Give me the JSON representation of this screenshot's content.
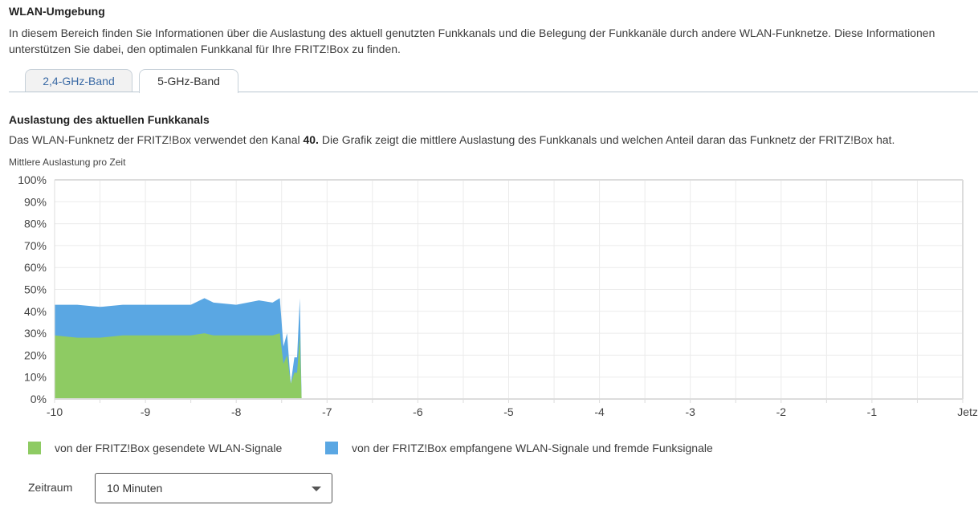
{
  "page": {
    "title": "WLAN-Umgebung",
    "description": "In diesem Bereich finden Sie Informationen über die Auslastung des aktuell genutzten Funkkanals und die Belegung der Funkkanäle durch andere WLAN-Funknetze. Diese Informationen unterstützen Sie dabei, den optimalen Funkkanal für Ihre FRITZ!Box zu finden."
  },
  "tabs": [
    {
      "label": "2,4-GHz-Band",
      "active": false
    },
    {
      "label": "5-GHz-Band",
      "active": true
    }
  ],
  "section": {
    "title": "Auslastung des aktuellen Funkkanals",
    "desc_before": "Das WLAN-Funknetz der FRITZ!Box verwendet den Kanal ",
    "channel": "40.",
    "desc_after": " Die Grafik zeigt die mittlere Auslastung des Funkkanals und welchen Anteil daran das Funknetz der FRITZ!Box hat.",
    "chart_label": "Mittlere Auslastung pro Zeit"
  },
  "colors": {
    "sent": "#8ecb63",
    "received": "#5aa7e3",
    "grid": "#ebebeb",
    "axis": "#dcdcdc"
  },
  "legend": [
    {
      "label": "von der FRITZ!Box gesendete WLAN-Signale",
      "color": "#8ecb63"
    },
    {
      "label": "von der FRITZ!Box empfangene WLAN-Signale und fremde Funksignale",
      "color": "#5aa7e3"
    }
  ],
  "period": {
    "label": "Zeitraum",
    "selected": "10 Minuten"
  },
  "chart_data": {
    "type": "area",
    "stacked": false,
    "title": "Mittlere Auslastung pro Zeit",
    "xlabel": "",
    "ylabel": "",
    "xlim": [
      -10,
      0
    ],
    "ylim": [
      0,
      100
    ],
    "x_ticks": [
      "-10",
      "-9",
      "-8",
      "-7",
      "-6",
      "-5",
      "-4",
      "-3",
      "-2",
      "-1",
      "Jetzt"
    ],
    "y_ticks": [
      "0%",
      "10%",
      "20%",
      "30%",
      "40%",
      "50%",
      "60%",
      "70%",
      "80%",
      "90%",
      "100%"
    ],
    "grid": true,
    "legend_position": "bottom",
    "x": [
      -10,
      -9.75,
      -9.5,
      -9.25,
      -9.0,
      -8.75,
      -8.5,
      -8.35,
      -8.25,
      -8.0,
      -7.75,
      -7.6,
      -7.52,
      -7.48,
      -7.44,
      -7.4,
      -7.36,
      -7.33,
      -7.3,
      -7.28
    ],
    "series": [
      {
        "name": "von der FRITZ!Box empfangene WLAN-Signale und fremde Funksignale (gesamt)",
        "color": "#5aa7e3",
        "values": [
          43,
          43,
          42,
          43,
          43,
          43,
          43,
          46,
          44,
          43,
          45,
          44,
          46,
          24,
          30,
          7,
          19,
          19,
          46,
          0
        ]
      },
      {
        "name": "von der FRITZ!Box gesendete WLAN-Signale",
        "color": "#8ecb63",
        "values": [
          29,
          28,
          28,
          29,
          29,
          29,
          29,
          30,
          29,
          29,
          29,
          29,
          30,
          16,
          20,
          7,
          12,
          12,
          29,
          0
        ]
      }
    ]
  }
}
